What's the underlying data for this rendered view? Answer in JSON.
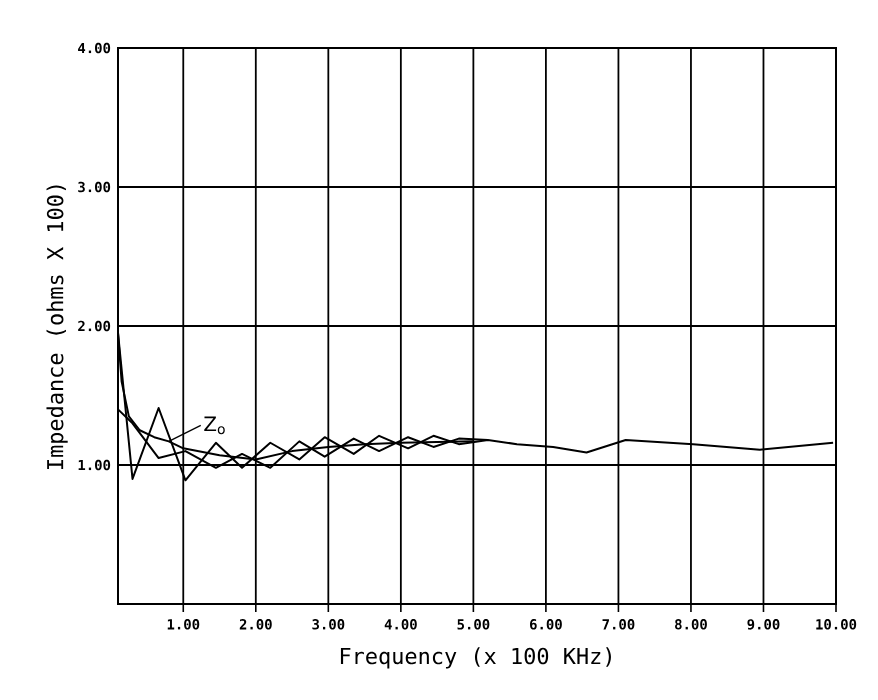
{
  "chart_data": {
    "type": "line",
    "xlabel": "Frequency (x 100 KHz)",
    "ylabel": "Impedance (ohms X 100)",
    "xlim": [
      0.1,
      10
    ],
    "ylim": [
      0,
      4
    ],
    "xticks": [
      {
        "value": 1,
        "label": "1.00"
      },
      {
        "value": 2,
        "label": "2.00"
      },
      {
        "value": 3,
        "label": "3.00"
      },
      {
        "value": 4,
        "label": "4.00"
      },
      {
        "value": 5,
        "label": "5.00"
      },
      {
        "value": 6,
        "label": "6.00"
      },
      {
        "value": 7,
        "label": "7.00"
      },
      {
        "value": 8,
        "label": "8.00"
      },
      {
        "value": 9,
        "label": "9.00"
      },
      {
        "value": 10,
        "label": "10.00"
      }
    ],
    "yticks": [
      {
        "value": 1,
        "label": "1.00"
      },
      {
        "value": 2,
        "label": "2.00"
      },
      {
        "value": 3,
        "label": "3.00"
      },
      {
        "value": 4,
        "label": "4.00"
      }
    ],
    "grid": true,
    "marker": "none",
    "line_style": "solid",
    "series": [
      {
        "color": "#000000",
        "x": [
          0.1,
          0.3,
          0.66,
          1.03,
          1.45,
          1.81,
          2.2,
          2.6,
          2.95,
          3.35,
          3.7,
          4.1,
          4.45,
          4.8,
          5.2,
          5.6,
          6.1,
          6.56,
          7.1,
          8.03,
          8.95,
          9.96
        ],
        "values": [
          1.95,
          0.9,
          1.41,
          0.89,
          1.16,
          0.98,
          1.16,
          1.04,
          1.2,
          1.08,
          1.21,
          1.12,
          1.21,
          1.15,
          1.18,
          1.15,
          1.13,
          1.09,
          1.18,
          1.15,
          1.11,
          1.16
        ]
      },
      {
        "color": "#000000",
        "x": [
          0.1,
          0.3,
          0.66,
          1.03,
          1.45,
          1.81,
          2.2,
          2.6,
          2.95,
          3.35,
          3.7,
          4.1,
          4.45,
          4.8,
          5.2
        ],
        "values": [
          1.4,
          1.3,
          1.05,
          1.1,
          0.98,
          1.08,
          0.98,
          1.17,
          1.06,
          1.19,
          1.1,
          1.2,
          1.13,
          1.19,
          1.18
        ]
      },
      {
        "color": "#000000",
        "x": [
          0.1,
          0.15,
          0.25,
          0.4,
          0.6,
          0.8,
          1.0,
          1.5,
          2.0,
          2.5,
          3.0,
          3.5,
          4.0,
          5.0
        ],
        "values": [
          1.95,
          1.6,
          1.35,
          1.25,
          1.2,
          1.17,
          1.12,
          1.07,
          1.04,
          1.1,
          1.13,
          1.15,
          1.16,
          1.17
        ]
      }
    ],
    "annotations": [
      {
        "text": "Z$_{o}$",
        "x": 0.8,
        "y": 1.17
      }
    ]
  }
}
